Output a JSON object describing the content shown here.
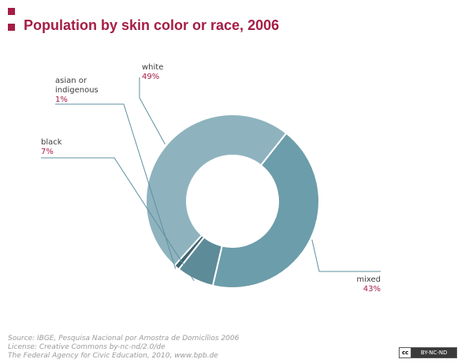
{
  "title": "Population by skin color or race, 2006",
  "colors": {
    "accent": "#a51d45",
    "leader": "#5f8fa0",
    "white": "#8eb3be",
    "mixed": "#6c9daa",
    "black": "#5e8b98",
    "asian_or_indigenous": "#3e6470"
  },
  "chart_data": {
    "type": "pie",
    "donut": true,
    "categories": [
      "white",
      "mixed",
      "black",
      "asian or indigenous"
    ],
    "values": [
      49,
      43,
      7,
      1
    ],
    "labels": [
      {
        "key": "white",
        "name": [
          "white"
        ],
        "value": "49%"
      },
      {
        "key": "mixed",
        "name": [
          "mixed"
        ],
        "value": "43%"
      },
      {
        "key": "black",
        "name": [
          "black"
        ],
        "value": "7%"
      },
      {
        "key": "asian_or_indigenous",
        "name": [
          "asian or",
          "indigenous"
        ],
        "value": "1%"
      }
    ]
  },
  "source": {
    "line1": "Source: IBGE, Pesquisa Nacional por Amostra de Domicílios 2006",
    "line2": "License: Creative Commons by-nc-nd/2.0/de",
    "line3": "The Federal Agency for Civic Education, 2010, www.bpb.de"
  },
  "license_badge": {
    "logo": "cc",
    "terms": "BY-NC-ND"
  }
}
